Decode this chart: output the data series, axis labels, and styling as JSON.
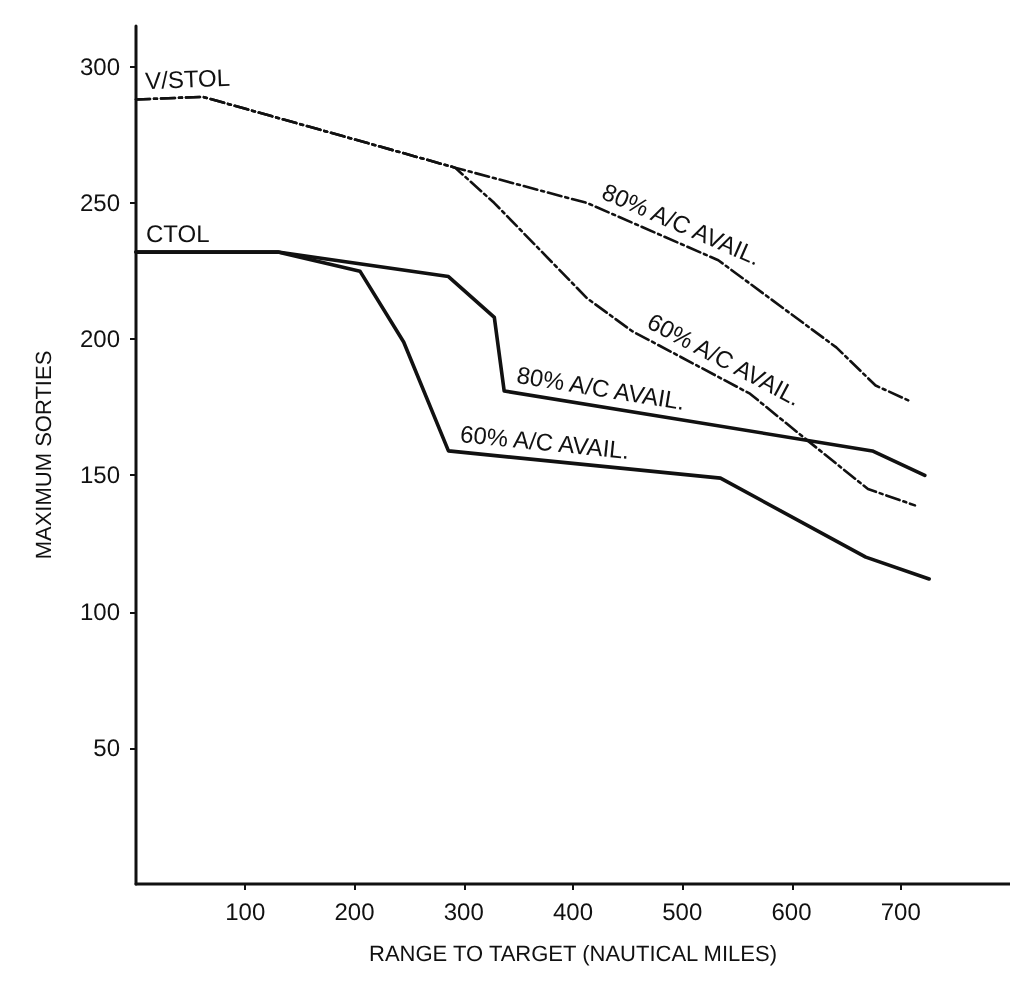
{
  "chart_data": {
    "type": "line",
    "xlabel": "RANGE TO TARGET (NAUTICAL MILES)",
    "ylabel": "MAXIMUM SORTIES",
    "xlim": [
      0,
      800
    ],
    "ylim": [
      0,
      315
    ],
    "xticks": [
      100,
      200,
      300,
      400,
      500,
      600,
      700
    ],
    "yticks": [
      50,
      100,
      150,
      200,
      250,
      300
    ],
    "grid": false,
    "marker": "none",
    "series": [
      {
        "color": "#111111",
        "line_style": "dashed",
        "x": [
          0,
          61,
          292,
          413,
          533,
          641,
          677,
          710
        ],
        "values": [
          288,
          289,
          263,
          250,
          229,
          197,
          183,
          177
        ]
      },
      {
        "color": "#111111",
        "line_style": "dashed",
        "x": [
          0,
          61,
          292,
          328,
          413,
          454,
          562,
          611,
          670,
          713
        ],
        "values": [
          288,
          289,
          263,
          250,
          215,
          203,
          180,
          164,
          145,
          139
        ]
      },
      {
        "color": "#111111",
        "line_style": "solid",
        "x": [
          0,
          130,
          286,
          328,
          337,
          674,
          722
        ],
        "values": [
          232,
          232,
          223,
          208,
          181,
          159,
          150
        ]
      },
      {
        "color": "#111111",
        "line_style": "solid",
        "x": [
          0,
          130,
          205,
          245,
          286,
          535,
          668,
          726
        ],
        "values": [
          232,
          232,
          225,
          199,
          159,
          149,
          120,
          112
        ]
      }
    ],
    "annotations": [
      {
        "text": "V/STOL",
        "x": 0,
        "y": 288
      },
      {
        "text": "CTOL",
        "x": 0,
        "y": 232
      },
      {
        "text": "80% A/C AVAIL.",
        "x": 413,
        "y": 250
      },
      {
        "text": "60% A/C AVAIL.",
        "x": 454,
        "y": 203
      },
      {
        "text": "80% A/C AVAIL.",
        "x": 337,
        "y": 181
      },
      {
        "text": "60% A/C AVAIL.",
        "x": 286,
        "y": 159
      }
    ]
  }
}
